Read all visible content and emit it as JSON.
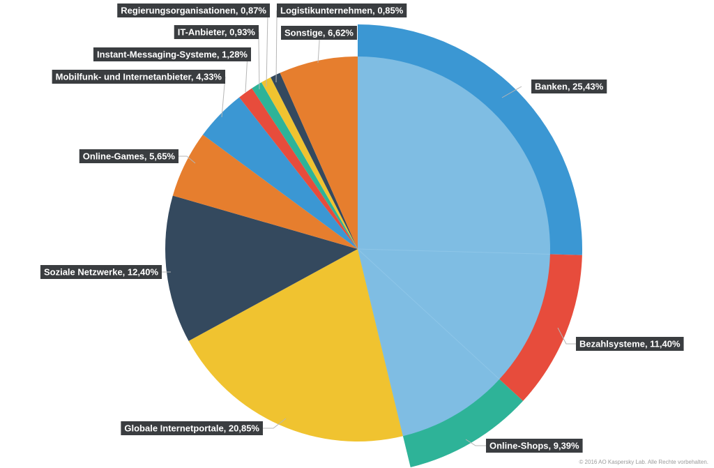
{
  "chart_data": {
    "type": "pie",
    "slices": [
      {
        "label": "Banken, 25,43%",
        "value": 25.43,
        "color": "#3b97d3",
        "group": "financial"
      },
      {
        "label": "Bezahlsysteme, 11,40%",
        "value": 11.4,
        "color": "#e74c3c",
        "group": "financial"
      },
      {
        "label": "Online-Shops, 9,39%",
        "value": 9.39,
        "color": "#2eb398",
        "group": "financial"
      },
      {
        "label": "Globale Internetportale, 20,85%",
        "value": 20.85,
        "color": "#f0c330"
      },
      {
        "label": "Soziale Netzwerke, 12,40%",
        "value": 12.4,
        "color": "#34495e"
      },
      {
        "label": "Online-Games, 5,65%",
        "value": 5.65,
        "color": "#e67e2e"
      },
      {
        "label": "Mobilfunk- und Internetanbieter, 4,33%",
        "value": 4.33,
        "color": "#3b97d3"
      },
      {
        "label": "Instant-Messaging-Systeme, 1,28%",
        "value": 1.28,
        "color": "#e74c3c"
      },
      {
        "label": "IT-Anbieter, 0,93%",
        "value": 0.93,
        "color": "#2eb398"
      },
      {
        "label": "Regierungsorganisationen, 0,87%",
        "value": 0.87,
        "color": "#f0c330"
      },
      {
        "label": "Logistikunternehmen, 0,85%",
        "value": 0.85,
        "color": "#34495e"
      },
      {
        "label": "Sonstige, 6,62%",
        "value": 6.62,
        "color": "#e67e2e"
      }
    ],
    "financial_group_total": 46.22,
    "financial_group_color": "#7fbde3"
  },
  "footer": {
    "copyright": "© 2016 AO Kaspersky Lab. Alle Rechte vorbehalten."
  }
}
